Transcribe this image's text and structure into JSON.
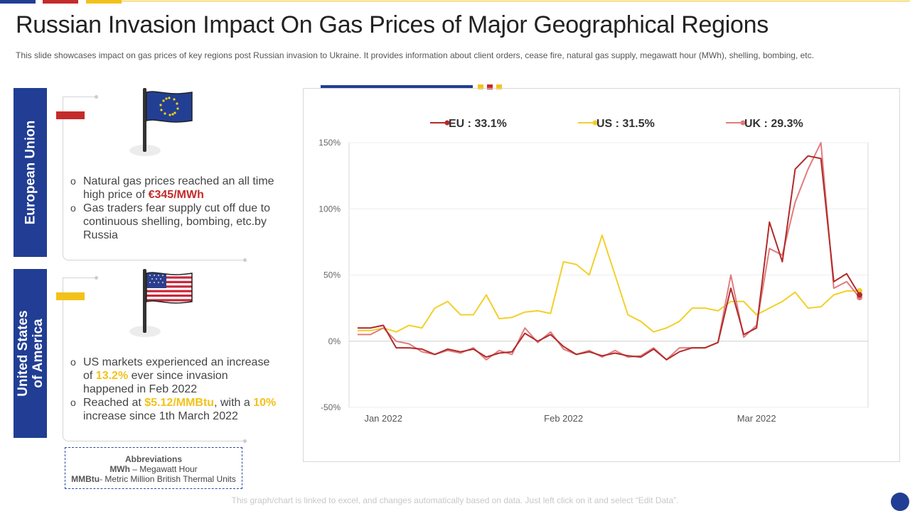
{
  "title": "Russian Invasion Impact On Gas Prices of Major Geographical Regions",
  "subtitle": "This slide showcases impact on gas prices of key regions post Russian invasion to Ukraine. It provides information about client orders, cease fire, natural gas supply, megawatt hour (MWh), shelling, bombing, etc.",
  "colors": {
    "navy": "#213e94",
    "red": "#c42b2b",
    "yellow": "#f2c21b",
    "eu_line": "#b22a2a",
    "us_line": "#f3cf2a",
    "uk_line": "#e07c7c"
  },
  "eu_panel": {
    "label": "European Union",
    "flag_icon": "eu-flag-icon",
    "bullet1_pre": "Natural gas prices reached an all time high price of ",
    "bullet1_highlight": "€345/MWh",
    "bullet2": "Gas traders fear supply cut off due to continuous shelling, bombing, etc.by Russia"
  },
  "us_panel": {
    "label_line1": "United States",
    "label_line2": "of America",
    "flag_icon": "us-flag-icon",
    "bullet1_pre": "US markets experienced an increase of ",
    "bullet1_highlight": "13.2%",
    "bullet1_post": " ever since invasion happened in Feb 2022",
    "bullet2_pre": "Reached at ",
    "bullet2_highlight1": "$5.12/MMBtu",
    "bullet2_mid": ", with a ",
    "bullet2_highlight2": "10%",
    "bullet2_post": " increase since 1th March 2022"
  },
  "abbreviations": {
    "heading": "Abbreviations",
    "line1_term": "MWh",
    "line1_def": " – Megawatt Hour",
    "line2_term": "MMBtu",
    "line2_def": "- Metric Million British Thermal Units"
  },
  "footer_note": "This graph/chart is linked to excel, and changes automatically based on data. Just left click on it and select “Edit Data”.",
  "chart_data": {
    "type": "line",
    "title": "",
    "xlabel": "",
    "ylabel": "",
    "ylim": [
      -50,
      150
    ],
    "yticks": [
      -50,
      0,
      50,
      100,
      150
    ],
    "ytick_labels": [
      "-50%",
      "0%",
      "50%",
      "100%",
      "150%"
    ],
    "x_labels": [
      {
        "label": "Jan 2022",
        "index": 2
      },
      {
        "label": "Feb 2022",
        "index": 16
      },
      {
        "label": "Mar 2022",
        "index": 31
      }
    ],
    "legend_position": "top",
    "series": [
      {
        "name": "EU",
        "legend": "EU : 33.1%",
        "values": [
          10,
          10,
          12,
          -5,
          -5,
          -6,
          -10,
          -6,
          -8,
          -6,
          -12,
          -9,
          -8,
          6,
          0,
          5,
          -4,
          -10,
          -8,
          -11,
          -9,
          -11,
          -12,
          -6,
          -14,
          -8,
          -5,
          -5,
          -1,
          40,
          5,
          10,
          90,
          60,
          130,
          140,
          138,
          45,
          51,
          35
        ]
      },
      {
        "name": "US",
        "legend": "US : 31.5%",
        "values": [
          8,
          8,
          10,
          7,
          12,
          10,
          25,
          30,
          20,
          20,
          35,
          17,
          18,
          22,
          23,
          21,
          60,
          58,
          50,
          80,
          50,
          20,
          15,
          7,
          10,
          15,
          25,
          25,
          23,
          30,
          30,
          20,
          25,
          30,
          37,
          25,
          26,
          35,
          38,
          38
        ]
      },
      {
        "name": "UK",
        "legend": "UK : 29.3%",
        "values": [
          5,
          5,
          10,
          0,
          -2,
          -8,
          -10,
          -7,
          -9,
          -5,
          -14,
          -7,
          -10,
          10,
          -1,
          7,
          -6,
          -10,
          -7,
          -12,
          -7,
          -12,
          -11,
          -5,
          -14,
          -5,
          -5,
          -5,
          -1,
          50,
          3,
          12,
          70,
          65,
          105,
          130,
          150,
          40,
          45,
          33
        ]
      }
    ]
  }
}
